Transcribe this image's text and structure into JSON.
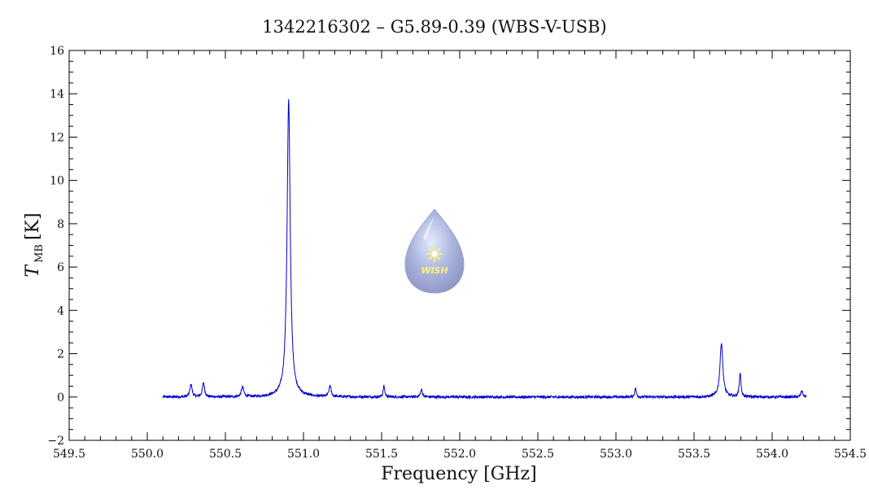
{
  "chart_data": {
    "type": "line",
    "title": "1342216302 – G5.89-0.39 (WBS-V-USB)",
    "xlabel": "Frequency [GHz]",
    "ylabel_main": "T",
    "ylabel_sub": "MB",
    "ylabel_unit": "[K]",
    "xlim": [
      549.5,
      554.5
    ],
    "ylim": [
      -2,
      16
    ],
    "x_ticks": [
      549.5,
      550.0,
      550.5,
      551.0,
      551.5,
      552.0,
      552.5,
      553.0,
      553.5,
      554.0,
      554.5
    ],
    "x_tick_labels": [
      "549.5",
      "550.0",
      "550.5",
      "551.0",
      "551.5",
      "552.0",
      "552.5",
      "553.0",
      "553.5",
      "554.0",
      "554.5"
    ],
    "y_ticks": [
      -2,
      0,
      2,
      4,
      6,
      8,
      10,
      12,
      14,
      16
    ],
    "y_tick_labels": [
      "−2",
      "0",
      "2",
      "4",
      "6",
      "8",
      "10",
      "12",
      "14",
      "16"
    ],
    "grid": false,
    "line_color": "#0000cc",
    "x_range": [
      550.1,
      554.22
    ],
    "baseline": 0.0,
    "peaks": [
      {
        "x": 550.28,
        "y": 0.6,
        "width": 0.008
      },
      {
        "x": 550.36,
        "y": 0.65,
        "width": 0.008
      },
      {
        "x": 550.61,
        "y": 0.45,
        "width": 0.009
      },
      {
        "x": 550.905,
        "y": 13.7,
        "width": 0.012
      },
      {
        "x": 551.17,
        "y": 0.5,
        "width": 0.008
      },
      {
        "x": 551.515,
        "y": 0.5,
        "width": 0.006
      },
      {
        "x": 551.755,
        "y": 0.35,
        "width": 0.007
      },
      {
        "x": 553.125,
        "y": 0.4,
        "width": 0.006
      },
      {
        "x": 553.675,
        "y": 2.5,
        "width": 0.011
      },
      {
        "x": 553.795,
        "y": 1.15,
        "width": 0.006
      },
      {
        "x": 554.19,
        "y": 0.3,
        "width": 0.007
      }
    ],
    "logo": {
      "name": "wish-logo-icon",
      "text": "WISH",
      "color": "#aab4dc"
    }
  }
}
